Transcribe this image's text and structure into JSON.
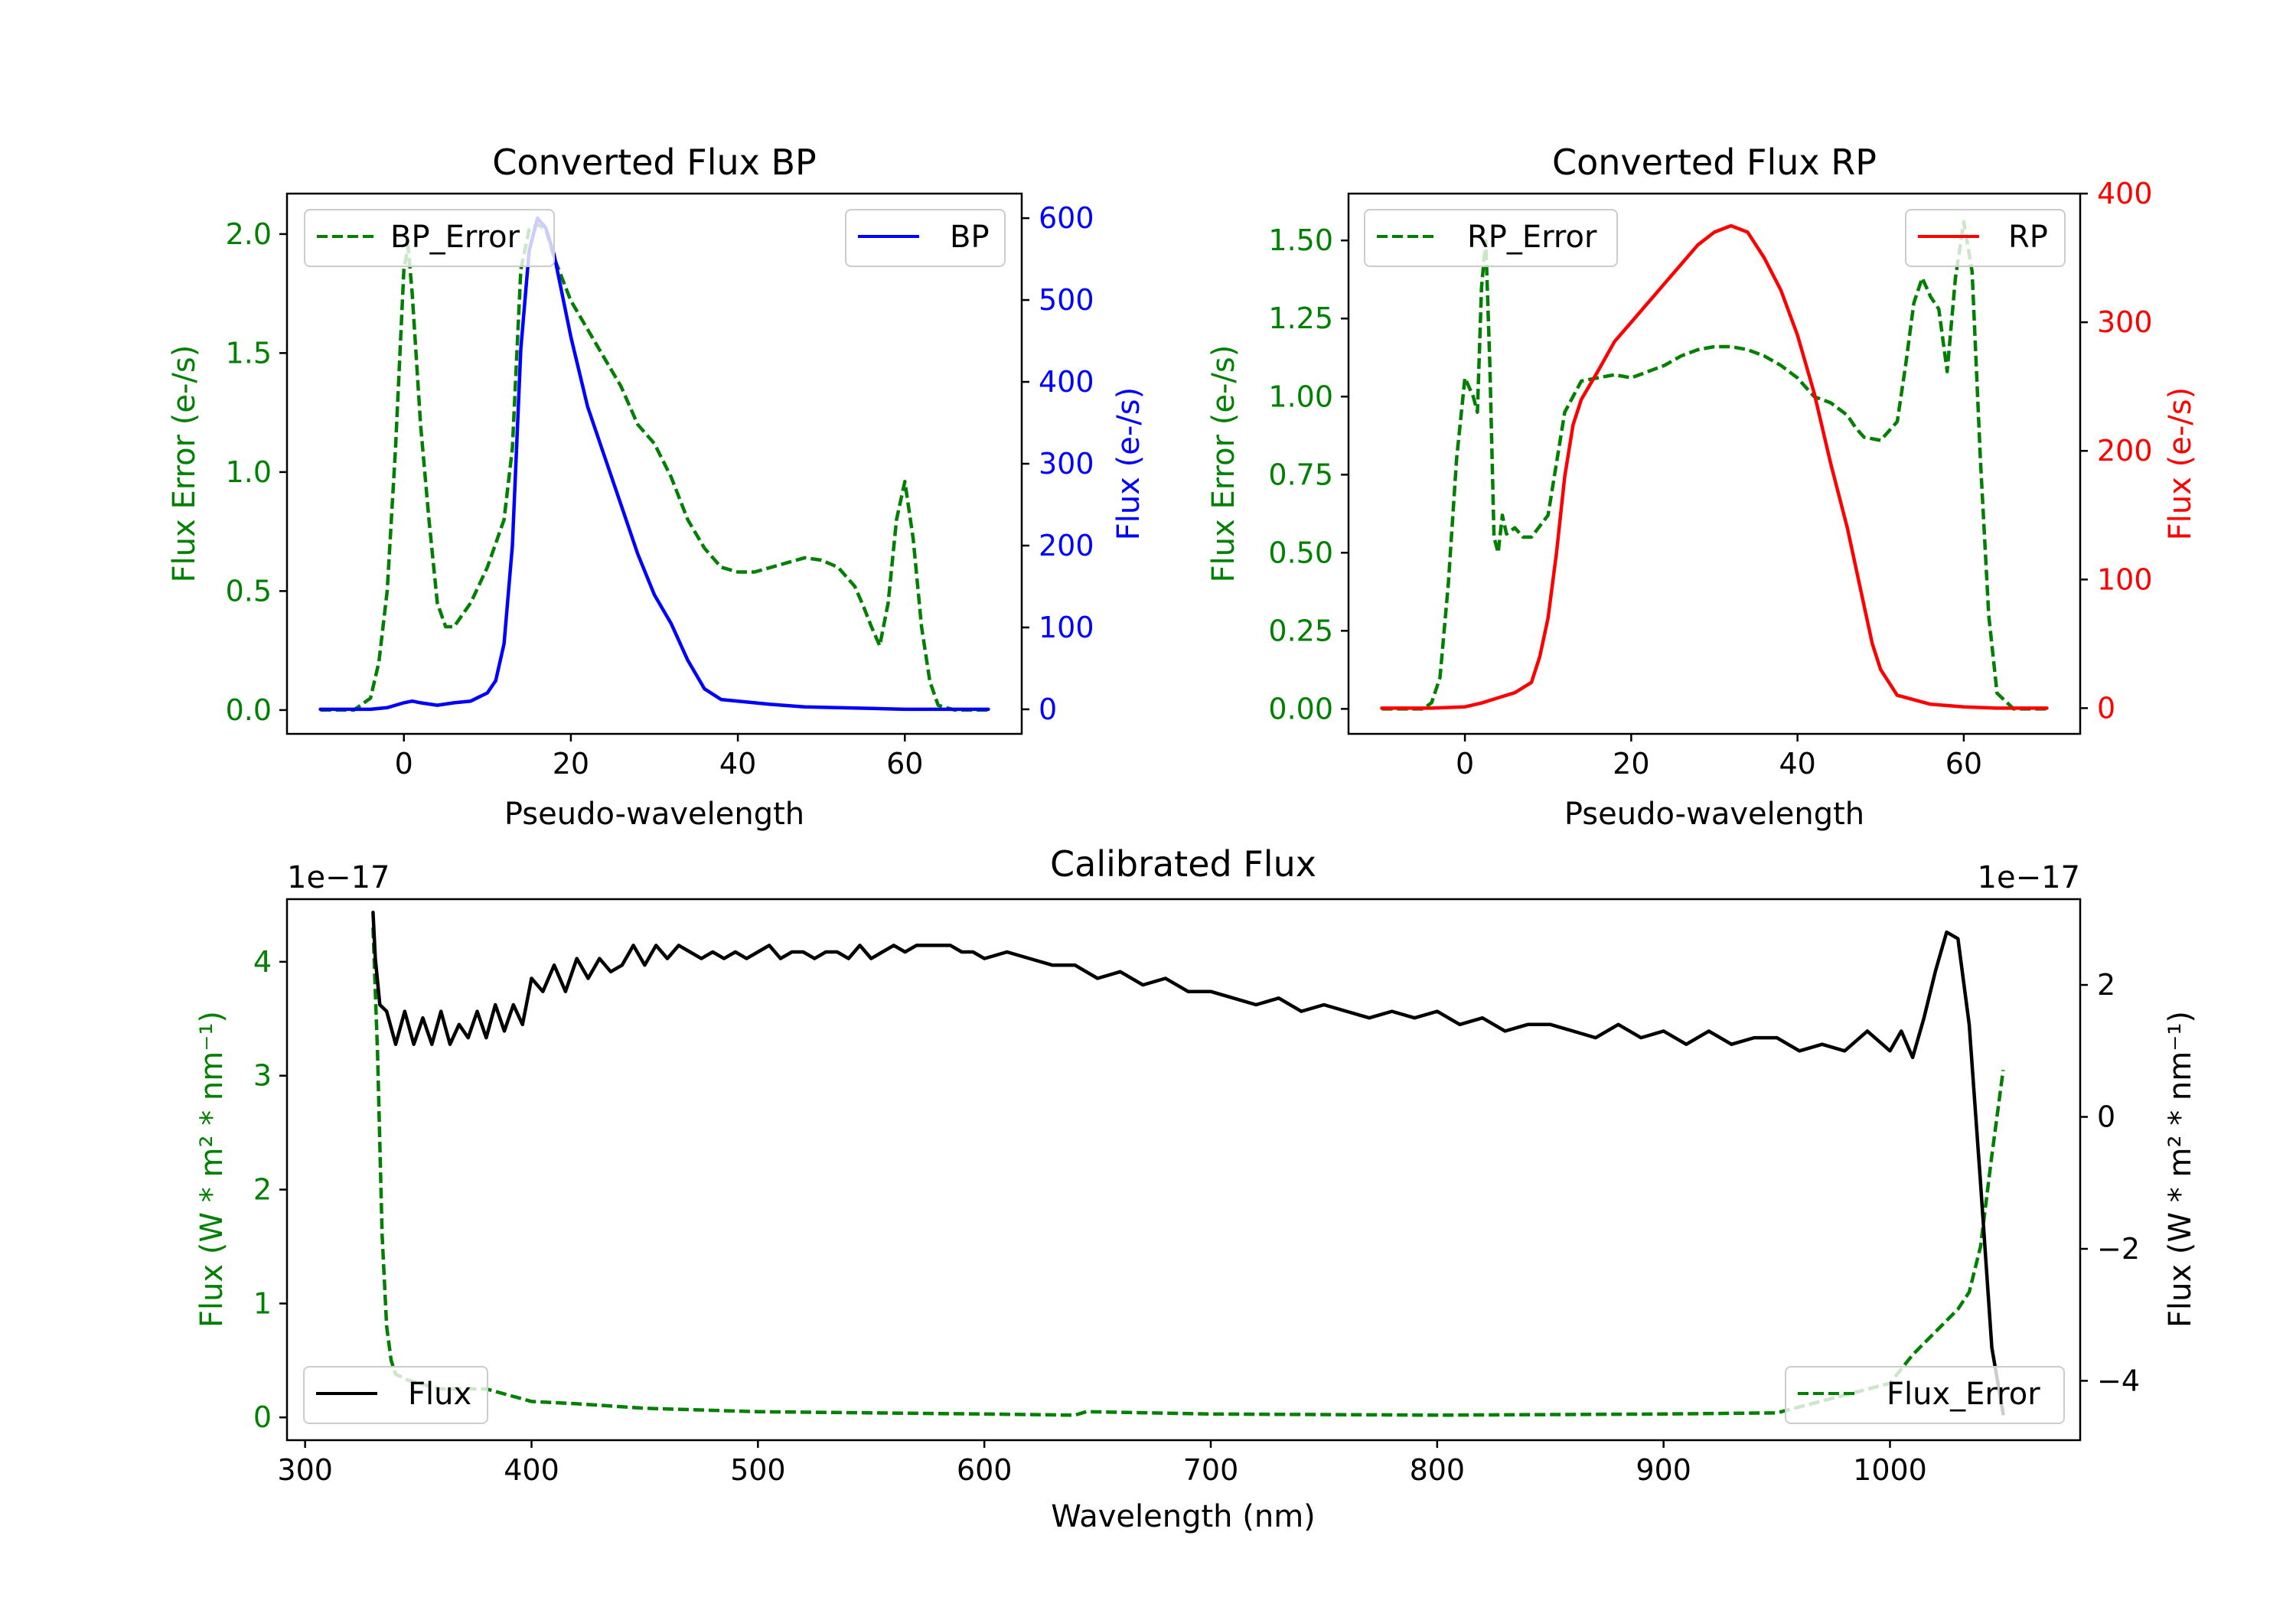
{
  "figure": {
    "background": "#ffffff"
  },
  "chart_data": [
    {
      "id": "bp",
      "type": "line",
      "title": "Converted Flux BP",
      "xlabel": "Pseudo-wavelength",
      "ylabel_left": "Flux Error (e-/s)",
      "ylabel_right": "Flux (e-/s)",
      "xlim": [
        -14,
        74
      ],
      "ylim_left": [
        -0.1,
        2.17
      ],
      "ylim_right": [
        -30,
        630
      ],
      "xticks": [
        0,
        20,
        40,
        60
      ],
      "yticks_left": [
        0.0,
        0.5,
        1.0,
        1.5,
        2.0
      ],
      "ytick_labels_left": [
        "0.0",
        "0.5",
        "1.0",
        "1.5",
        "2.0"
      ],
      "yticks_right": [
        0,
        100,
        200,
        300,
        400,
        500,
        600
      ],
      "left_axis_color": "#008000",
      "right_axis_color": "#0000ff",
      "legend_left": {
        "label": "BP_Error",
        "position": "upper left"
      },
      "legend_right": {
        "label": "BP",
        "position": "upper right"
      },
      "series": [
        {
          "name": "BP_Error",
          "axis": "left",
          "color": "#008000",
          "dash": true,
          "x": [
            -10,
            -6,
            -4,
            -3,
            -2,
            -1,
            0,
            0.5,
            1,
            2,
            3,
            4,
            5,
            6,
            8,
            10,
            12,
            13,
            14,
            15,
            16,
            17,
            18,
            20,
            22,
            24,
            26,
            28,
            30,
            32,
            34,
            36,
            38,
            40,
            42,
            44,
            46,
            48,
            50,
            52,
            54,
            55,
            56,
            57,
            58,
            59,
            60,
            61,
            62,
            63,
            64,
            66,
            68,
            70
          ],
          "y": [
            0,
            0,
            0.05,
            0.2,
            0.5,
            1.1,
            1.85,
            1.95,
            1.75,
            1.2,
            0.8,
            0.45,
            0.35,
            0.35,
            0.45,
            0.6,
            0.8,
            1.1,
            1.85,
            2.02,
            2.04,
            2.02,
            1.9,
            1.72,
            1.6,
            1.48,
            1.36,
            1.2,
            1.12,
            0.98,
            0.8,
            0.68,
            0.6,
            0.58,
            0.58,
            0.6,
            0.62,
            0.64,
            0.63,
            0.6,
            0.52,
            0.44,
            0.35,
            0.27,
            0.45,
            0.8,
            0.96,
            0.72,
            0.35,
            0.12,
            0.02,
            0,
            0,
            0
          ]
        },
        {
          "name": "BP",
          "axis": "right",
          "color": "#0000ff",
          "dash": false,
          "x": [
            -10,
            -4,
            -2,
            0,
            1,
            2,
            4,
            6,
            8,
            10,
            11,
            12,
            13,
            14,
            15,
            16,
            17,
            18,
            19,
            20,
            22,
            24,
            26,
            28,
            30,
            32,
            34,
            36,
            38,
            40,
            44,
            48,
            52,
            56,
            60,
            64,
            70
          ],
          "y": [
            0,
            0,
            2,
            8,
            10,
            8,
            5,
            8,
            10,
            20,
            35,
            80,
            200,
            440,
            560,
            600,
            588,
            555,
            505,
            455,
            370,
            310,
            250,
            190,
            140,
            105,
            60,
            25,
            12,
            10,
            6,
            3,
            2,
            1,
            0,
            0,
            0
          ]
        }
      ]
    },
    {
      "id": "rp",
      "type": "line",
      "title": "Converted Flux RP",
      "xlabel": "Pseudo-wavelength",
      "ylabel_left": "Flux Error (e-/s)",
      "ylabel_right": "Flux (e-/s)",
      "xlim": [
        -14,
        74
      ],
      "ylim_left": [
        -0.08,
        1.65
      ],
      "ylim_right": [
        -20,
        400
      ],
      "xticks": [
        0,
        20,
        40,
        60
      ],
      "yticks_left": [
        0.0,
        0.25,
        0.5,
        0.75,
        1.0,
        1.25,
        1.5
      ],
      "ytick_labels_left": [
        "0.00",
        "0.25",
        "0.50",
        "0.75",
        "1.00",
        "1.25",
        "1.50"
      ],
      "yticks_right": [
        0,
        100,
        200,
        300,
        400
      ],
      "left_axis_color": "#008000",
      "right_axis_color": "#ff0000",
      "legend_left": {
        "label": "RP_Error",
        "position": "upper left"
      },
      "legend_right": {
        "label": "RP",
        "position": "upper right"
      },
      "series": [
        {
          "name": "RP_Error",
          "axis": "left",
          "color": "#008000",
          "dash": true,
          "x": [
            -10,
            -5,
            -4,
            -3,
            -2,
            -1,
            0,
            1,
            1.5,
            2,
            2.5,
            3,
            3.5,
            4,
            4.5,
            5,
            6,
            7,
            8,
            10,
            12,
            14,
            16,
            18,
            20,
            22,
            24,
            26,
            28,
            30,
            32,
            34,
            36,
            38,
            40,
            42,
            44,
            46,
            47,
            48,
            50,
            52,
            53,
            54,
            55,
            56,
            57,
            58,
            59,
            60,
            61,
            62,
            63,
            64,
            66,
            70
          ],
          "y": [
            0,
            0,
            0.02,
            0.1,
            0.4,
            0.8,
            1.06,
            1.0,
            0.95,
            1.35,
            1.5,
            1.1,
            0.55,
            0.5,
            0.62,
            0.56,
            0.58,
            0.55,
            0.55,
            0.62,
            0.95,
            1.05,
            1.06,
            1.07,
            1.06,
            1.08,
            1.1,
            1.13,
            1.15,
            1.16,
            1.16,
            1.15,
            1.13,
            1.1,
            1.06,
            1.0,
            0.98,
            0.94,
            0.9,
            0.87,
            0.86,
            0.92,
            1.1,
            1.3,
            1.38,
            1.32,
            1.28,
            1.08,
            1.38,
            1.56,
            1.4,
            0.8,
            0.3,
            0.05,
            0,
            0
          ]
        },
        {
          "name": "RP",
          "axis": "right",
          "color": "#ff0000",
          "dash": false,
          "x": [
            -10,
            -4,
            0,
            2,
            4,
            6,
            8,
            9,
            10,
            11,
            12,
            13,
            14,
            16,
            18,
            20,
            22,
            24,
            26,
            28,
            30,
            32,
            34,
            36,
            38,
            40,
            42,
            44,
            46,
            48,
            49,
            50,
            52,
            56,
            60,
            64,
            70
          ],
          "y": [
            0,
            0,
            1,
            4,
            8,
            12,
            20,
            40,
            70,
            120,
            180,
            220,
            240,
            262,
            285,
            300,
            315,
            330,
            345,
            360,
            370,
            375,
            370,
            350,
            325,
            290,
            245,
            190,
            140,
            80,
            50,
            30,
            10,
            3,
            1,
            0,
            0
          ]
        }
      ]
    },
    {
      "id": "calibrated",
      "type": "line",
      "title": "Calibrated Flux",
      "xlabel": "Wavelength (nm)",
      "ylabel_left": "Flux (W * m² * nm⁻¹)",
      "ylabel_right": "Flux (W * m² * nm⁻¹)",
      "offset_left": "1e−17",
      "offset_right": "1e−17",
      "xlim": [
        292,
        1084
      ],
      "ylim_left": [
        -0.2,
        4.55
      ],
      "ylim_right": [
        -4.9,
        3.3
      ],
      "xticks": [
        300,
        400,
        500,
        600,
        700,
        800,
        900,
        1000
      ],
      "yticks_left": [
        0,
        1,
        2,
        3,
        4
      ],
      "ytick_labels_left": [
        "0",
        "1",
        "2",
        "3",
        "4"
      ],
      "yticks_right": [
        -4,
        -2,
        0,
        2
      ],
      "ytick_labels_right": [
        "−4",
        "−2",
        "0",
        "2"
      ],
      "left_axis_color": "#008000",
      "right_axis_color": "#000000",
      "legend_left": {
        "label": "Flux",
        "position": "lower left"
      },
      "legend_right": {
        "label": "Flux_Error",
        "position": "lower right"
      },
      "series": [
        {
          "name": "Flux_Error",
          "axis": "left",
          "color": "#008000",
          "dash": true,
          "x": [
            330,
            332,
            334,
            336,
            338,
            340,
            345,
            350,
            360,
            380,
            400,
            420,
            450,
            500,
            600,
            640,
            645,
            700,
            800,
            900,
            950,
            1000,
            1010,
            1020,
            1030,
            1035,
            1040,
            1045,
            1050
          ],
          "y": [
            4.3,
            3.2,
            1.6,
            0.8,
            0.5,
            0.38,
            0.33,
            0.3,
            0.25,
            0.25,
            0.14,
            0.12,
            0.08,
            0.05,
            0.03,
            0.02,
            0.05,
            0.03,
            0.02,
            0.03,
            0.04,
            0.3,
            0.55,
            0.75,
            0.95,
            1.1,
            1.5,
            2.3,
            3.05
          ]
        },
        {
          "name": "Flux",
          "axis": "right",
          "color": "#000000",
          "dash": false,
          "x": [
            330,
            331,
            333,
            336,
            340,
            344,
            348,
            352,
            356,
            360,
            364,
            368,
            372,
            376,
            380,
            384,
            388,
            392,
            396,
            400,
            405,
            410,
            415,
            420,
            425,
            430,
            435,
            440,
            445,
            450,
            455,
            460,
            465,
            470,
            475,
            480,
            485,
            490,
            495,
            500,
            505,
            510,
            515,
            520,
            525,
            530,
            535,
            540,
            545,
            550,
            555,
            560,
            565,
            570,
            575,
            580,
            585,
            590,
            595,
            600,
            610,
            620,
            630,
            640,
            650,
            660,
            670,
            680,
            690,
            700,
            710,
            720,
            730,
            740,
            750,
            760,
            770,
            780,
            790,
            800,
            810,
            820,
            830,
            840,
            850,
            860,
            870,
            880,
            890,
            900,
            910,
            920,
            930,
            940,
            950,
            960,
            970,
            980,
            990,
            1000,
            1005,
            1010,
            1015,
            1020,
            1025,
            1030,
            1035,
            1040,
            1045,
            1050
          ],
          "y": [
            3.1,
            2.4,
            1.7,
            1.6,
            1.1,
            1.6,
            1.1,
            1.5,
            1.1,
            1.6,
            1.1,
            1.4,
            1.2,
            1.6,
            1.2,
            1.7,
            1.3,
            1.7,
            1.4,
            2.1,
            1.9,
            2.3,
            1.9,
            2.4,
            2.1,
            2.4,
            2.2,
            2.3,
            2.6,
            2.3,
            2.6,
            2.4,
            2.6,
            2.5,
            2.4,
            2.5,
            2.4,
            2.5,
            2.4,
            2.5,
            2.6,
            2.4,
            2.5,
            2.5,
            2.4,
            2.5,
            2.5,
            2.4,
            2.6,
            2.4,
            2.5,
            2.6,
            2.5,
            2.6,
            2.6,
            2.6,
            2.6,
            2.5,
            2.5,
            2.4,
            2.5,
            2.4,
            2.3,
            2.3,
            2.1,
            2.2,
            2.0,
            2.1,
            1.9,
            1.9,
            1.8,
            1.7,
            1.8,
            1.6,
            1.7,
            1.6,
            1.5,
            1.6,
            1.5,
            1.6,
            1.4,
            1.5,
            1.3,
            1.4,
            1.4,
            1.3,
            1.2,
            1.4,
            1.2,
            1.3,
            1.1,
            1.3,
            1.1,
            1.2,
            1.2,
            1.0,
            1.1,
            1.0,
            1.3,
            1.0,
            1.3,
            0.9,
            1.5,
            2.2,
            2.8,
            2.7,
            1.4,
            -1.0,
            -3.5,
            -4.5
          ]
        }
      ]
    }
  ]
}
